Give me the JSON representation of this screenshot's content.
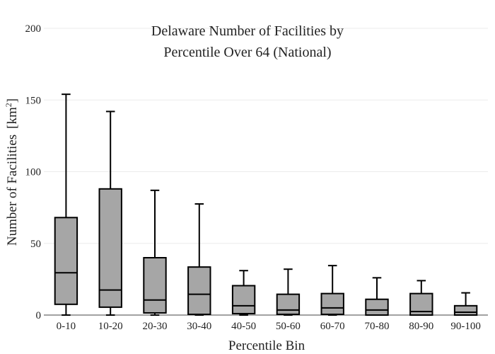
{
  "chart_data": {
    "type": "box",
    "title_lines": [
      "Delaware Number of Facilities by",
      "Percentile Over 64 (National)"
    ],
    "xlabel": "Percentile Bin",
    "ylabel": "Number of Facilities",
    "ylabel_unit_base": "[km",
    "ylabel_unit_sup": "2",
    "ylabel_unit_close": "]",
    "ylim": [
      0,
      200
    ],
    "yticks": [
      0,
      50,
      100,
      150,
      200
    ],
    "grid": true,
    "legend": "none",
    "categories": [
      "0-10",
      "10-20",
      "20-30",
      "30-40",
      "40-50",
      "50-60",
      "60-70",
      "70-80",
      "80-90",
      "90-100"
    ],
    "boxes": [
      {
        "min": 0,
        "q1": 7.5,
        "median": 29.5,
        "q3": 68,
        "max": 154
      },
      {
        "min": 0,
        "q1": 5.5,
        "median": 17.5,
        "q3": 88,
        "max": 142
      },
      {
        "min": 0,
        "q1": 1.5,
        "median": 10.5,
        "q3": 40,
        "max": 87
      },
      {
        "min": 0,
        "q1": 0.5,
        "median": 14.5,
        "q3": 33.5,
        "max": 77.5
      },
      {
        "min": 0,
        "q1": 1,
        "median": 6.5,
        "q3": 20.5,
        "max": 31
      },
      {
        "min": 0,
        "q1": 0.5,
        "median": 3.5,
        "q3": 14.5,
        "max": 32
      },
      {
        "min": 0,
        "q1": 0.5,
        "median": 5,
        "q3": 15,
        "max": 34.5
      },
      {
        "min": 0,
        "q1": 0,
        "median": 3.5,
        "q3": 11,
        "max": 26
      },
      {
        "min": 0,
        "q1": 0,
        "median": 2.5,
        "q3": 15,
        "max": 24
      },
      {
        "min": 0,
        "q1": 0,
        "median": 2,
        "q3": 6.5,
        "max": 15.5
      }
    ],
    "colors": {
      "box_fill": "#a6a6a6",
      "box_stroke": "#000000",
      "grid": "#ebebeb"
    }
  }
}
